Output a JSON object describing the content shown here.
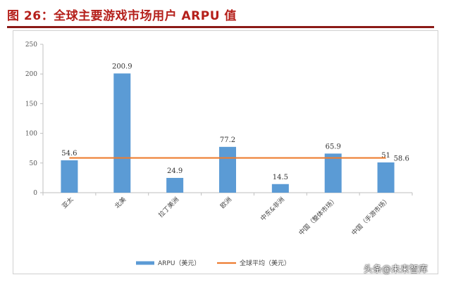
{
  "figure": {
    "title": "图 26：全球主要游戏市场用户 ARPU 值"
  },
  "watermark": "头条@未来智库",
  "chart_data": {
    "type": "bar",
    "categories": [
      "亚太",
      "北美",
      "拉丁美洲",
      "欧洲",
      "中东&非洲",
      "中国（整体市场）",
      "中国（手游市场）"
    ],
    "series": [
      {
        "name": "ARPU（美元）",
        "type": "bar",
        "values": [
          54.6,
          200.9,
          24.9,
          77.2,
          14.5,
          65.9,
          51
        ],
        "value_labels": [
          "54.6",
          "200.9",
          "24.9",
          "77.2",
          "14.5",
          "65.9",
          "51"
        ],
        "color": "#5b9bd5"
      },
      {
        "name": "全球平均（美元）",
        "type": "line",
        "value": 58.6,
        "value_label": "58.6",
        "color": "#ed7d31"
      }
    ],
    "ylim": [
      0,
      250
    ],
    "yticks": [
      0,
      50,
      100,
      150,
      200,
      250
    ],
    "grid": false,
    "legend": "bottom"
  }
}
